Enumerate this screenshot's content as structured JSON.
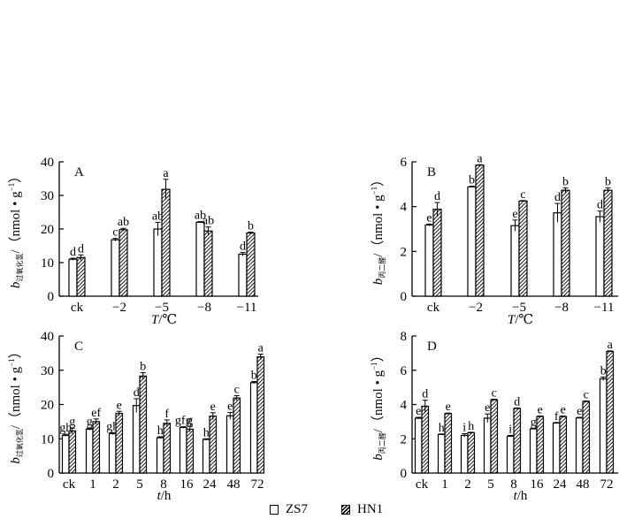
{
  "legend": {
    "series": [
      "ZS7",
      "HN1"
    ]
  },
  "chart_data": [
    {
      "type": "bar",
      "panel": "A",
      "ylabel_sub": "过氧化氢",
      "ylabel_unit": "/（nmol • g",
      "ylabel_sup": "−1",
      "ylabel_close": "）",
      "xlabel_var": "T",
      "xlabel_unit": "/℃",
      "ylim": [
        0,
        40
      ],
      "yticks": [
        "0",
        "10",
        "20",
        "30",
        "40"
      ],
      "ytick_values": [
        0,
        10,
        20,
        30,
        40
      ],
      "categories": [
        "ck",
        "−2",
        "−5",
        "−8",
        "−11"
      ],
      "series": [
        {
          "name": "ZS7",
          "values": [
            11,
            16.8,
            20,
            22,
            12.5
          ],
          "errors": [
            0.3,
            0.4,
            2,
            0.2,
            0.5
          ],
          "letters": [
            "d",
            "c",
            "ab",
            "ab",
            "d"
          ]
        },
        {
          "name": "HN1",
          "values": [
            11.5,
            19.8,
            31.8,
            19.4,
            18.8
          ],
          "errors": [
            0.8,
            0.4,
            3,
            1.2,
            0.3
          ],
          "letters": [
            "d",
            "ab",
            "a",
            "ab",
            "b"
          ]
        }
      ]
    },
    {
      "type": "bar",
      "panel": "B",
      "ylabel_sub": "丙二醛",
      "ylabel_unit": "/（nmol • g",
      "ylabel_sup": "−1",
      "ylabel_close": "）",
      "xlabel_var": "T",
      "xlabel_unit": "/℃",
      "ylim": [
        0,
        6
      ],
      "yticks": [
        "0",
        "2",
        "4",
        "6"
      ],
      "ytick_values": [
        0,
        2,
        4,
        6
      ],
      "categories": [
        "ck",
        "−2",
        "−5",
        "−8",
        "−11"
      ],
      "series": [
        {
          "name": "ZS7",
          "values": [
            3.18,
            4.88,
            3.15,
            3.72,
            3.55
          ],
          "errors": [
            0.04,
            0.03,
            0.25,
            0.42,
            0.25
          ],
          "letters": [
            "e",
            "b",
            "e",
            "d",
            "d"
          ]
        },
        {
          "name": "HN1",
          "values": [
            3.88,
            5.85,
            4.25,
            4.73,
            4.73
          ],
          "errors": [
            0.3,
            0.02,
            0.02,
            0.1,
            0.1
          ],
          "letters": [
            "d",
            "a",
            "c",
            "b",
            "b"
          ]
        }
      ]
    },
    {
      "type": "bar",
      "panel": "C",
      "ylabel_sub": "过氧化氢",
      "ylabel_unit": "/（nmol • g",
      "ylabel_sup": "−1",
      "ylabel_close": "）",
      "xlabel_var": "t",
      "xlabel_unit": "/h",
      "ylim": [
        0,
        40
      ],
      "yticks": [
        "0",
        "10",
        "20",
        "30",
        "40"
      ],
      "ytick_values": [
        0,
        10,
        20,
        30,
        40
      ],
      "categories": [
        "ck",
        "1",
        "2",
        "5",
        "8",
        "16",
        "24",
        "48",
        "72"
      ],
      "series": [
        {
          "name": "ZS7",
          "values": [
            11,
            12.8,
            11.5,
            19.7,
            10.3,
            13.3,
            9.8,
            16.7,
            26.4
          ],
          "errors": [
            0.3,
            0.3,
            0.3,
            2,
            0.3,
            0.2,
            0.2,
            1,
            0.3
          ],
          "letters": [
            "gh",
            "g",
            "gh",
            "d",
            "h",
            "gfg",
            "h",
            "e",
            "b"
          ]
        },
        {
          "name": "HN1",
          "values": [
            12.3,
            15,
            17.4,
            28.3,
            14.5,
            12.8,
            16.6,
            21.9,
            33.9
          ],
          "errors": [
            0.8,
            0.8,
            0.6,
            1,
            1,
            0.8,
            1,
            0.7,
            0.8
          ],
          "letters": [
            "g",
            "ef",
            "e",
            "b",
            "f",
            "g",
            "e",
            "c",
            "a"
          ]
        }
      ]
    },
    {
      "type": "bar",
      "panel": "D",
      "ylabel_sub": "丙二醛",
      "ylabel_unit": "/（nmol • g",
      "ylabel_sup": "−1",
      "ylabel_close": "）",
      "xlabel_var": "t",
      "xlabel_unit": "/h",
      "ylim": [
        0,
        8
      ],
      "yticks": [
        "0",
        "2",
        "4",
        "6",
        "8"
      ],
      "ytick_values": [
        0,
        2,
        4,
        6,
        8
      ],
      "categories": [
        "ck",
        "1",
        "2",
        "5",
        "8",
        "16",
        "24",
        "48",
        "72"
      ],
      "series": [
        {
          "name": "ZS7",
          "values": [
            3.2,
            2.25,
            2.2,
            3.2,
            2.15,
            2.58,
            2.92,
            3.22,
            5.5
          ],
          "errors": [
            0.05,
            0.03,
            0.1,
            0.25,
            0.05,
            0.03,
            0.03,
            0.03,
            0.1
          ],
          "letters": [
            "e",
            "h",
            "i",
            "e",
            "i",
            "g",
            "f",
            "e",
            "b"
          ]
        },
        {
          "name": "HN1",
          "values": [
            3.9,
            3.47,
            2.35,
            4.28,
            3.77,
            3.3,
            3.3,
            4.18,
            7.1
          ],
          "errors": [
            0.35,
            0.03,
            0.03,
            0.03,
            0.03,
            0.03,
            0.03,
            0.03,
            0.03
          ],
          "letters": [
            "d",
            "e",
            "h",
            "c",
            "d",
            "e",
            "e",
            "c",
            "a"
          ]
        }
      ]
    }
  ]
}
